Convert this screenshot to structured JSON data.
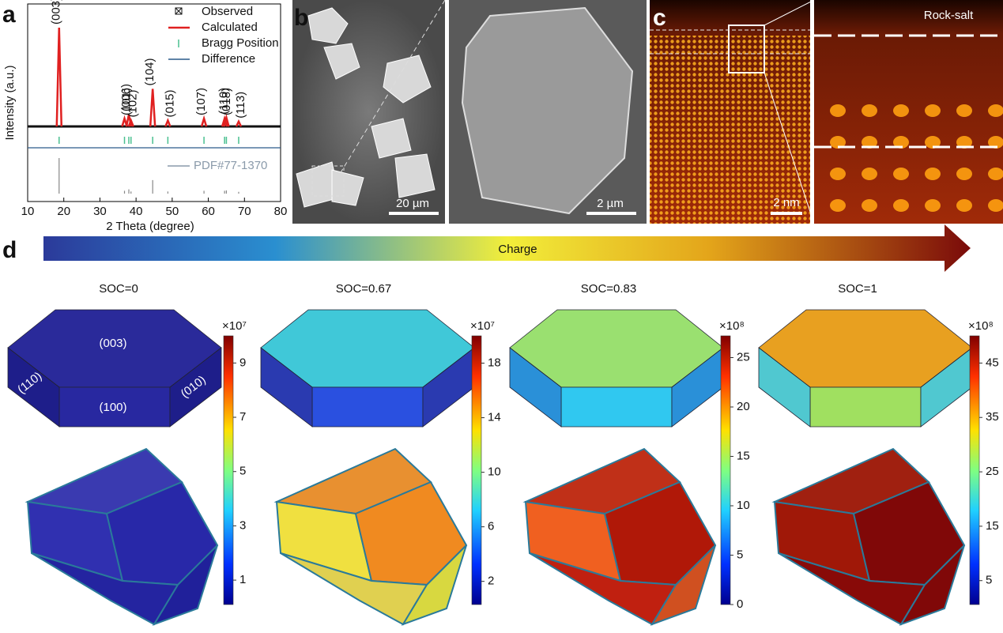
{
  "panel_a": {
    "label": "a",
    "x_label": "2 Theta (degree)",
    "y_label": "Intensity (a.u.)",
    "xlim": [
      10,
      80
    ],
    "xticks": [
      10,
      20,
      30,
      40,
      50,
      60,
      70,
      80
    ],
    "legend": [
      "Observed",
      "Calculated",
      "Bragg Position",
      "Difference"
    ],
    "reference": "PDF#77-1370",
    "peaks": [
      {
        "label": "(003)",
        "x": 18.7,
        "intensity": 100
      },
      {
        "label": "(101)",
        "x": 36.8,
        "intensity": 8
      },
      {
        "label": "(006)",
        "x": 38.0,
        "intensity": 12
      },
      {
        "label": "(102)",
        "x": 38.6,
        "intensity": 6
      },
      {
        "label": "(104)",
        "x": 44.6,
        "intensity": 38
      },
      {
        "label": "(015)",
        "x": 48.8,
        "intensity": 6
      },
      {
        "label": "(107)",
        "x": 58.8,
        "intensity": 8
      },
      {
        "label": "(018)",
        "x": 64.5,
        "intensity": 8
      },
      {
        "label": "(110)",
        "x": 65.0,
        "intensity": 9
      },
      {
        "label": "(113)",
        "x": 68.4,
        "intensity": 5
      }
    ]
  },
  "panel_b": {
    "label": "b",
    "scale_bars": [
      "20 µm",
      "2 µm"
    ]
  },
  "panel_c": {
    "label": "c",
    "scale_bar": "2 nm",
    "annotation": "Rock-salt"
  },
  "panel_d": {
    "label": "d",
    "arrow_label": "Charge",
    "facets": [
      "(003)",
      "(110)",
      "(100)",
      "(010)"
    ],
    "columns": [
      {
        "title": "SOC=0",
        "exponent": "×10⁷",
        "clim": [
          0.1,
          10
        ],
        "ticks": [
          1,
          3,
          5,
          7,
          9
        ]
      },
      {
        "title": "SOC=0.67",
        "exponent": "×10⁷",
        "clim": [
          0.3,
          20
        ],
        "ticks": [
          2,
          6,
          10,
          14,
          18
        ]
      },
      {
        "title": "SOC=0.83",
        "exponent": "×10⁸",
        "clim": [
          0,
          27.2
        ],
        "ticks": [
          0,
          5,
          10,
          15,
          20,
          25
        ]
      },
      {
        "title": "SOC=1",
        "exponent": "×10⁸",
        "clim": [
          0.6,
          50
        ],
        "ticks": [
          5,
          15,
          25,
          35,
          45
        ]
      }
    ]
  }
}
